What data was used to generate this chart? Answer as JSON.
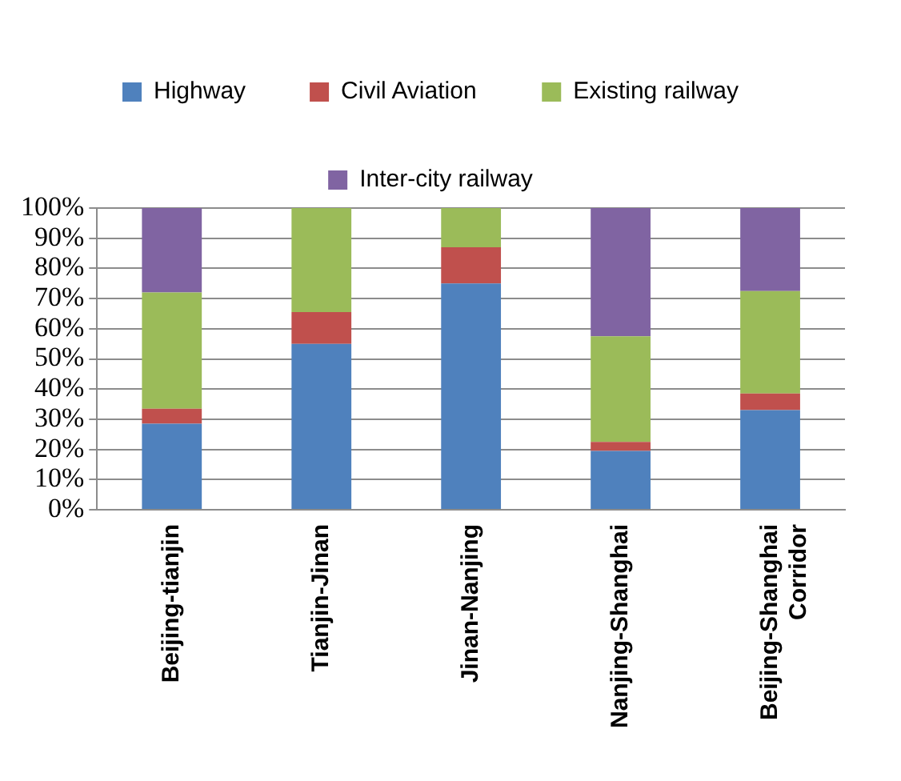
{
  "chart_data": {
    "type": "bar",
    "stacked": true,
    "categories": [
      "Beijing-tianjin",
      "Tianjin-Jinan",
      "Jinan-Nanjing",
      "Nanjing-Shanghai",
      "Beijing-Shanghai Corridor"
    ],
    "series": [
      {
        "name": "Highway",
        "color": "#4f81bd",
        "values": [
          28.5,
          55,
          75,
          19.5,
          33
        ]
      },
      {
        "name": "Civil Aviation",
        "color": "#c0504d",
        "values": [
          5,
          10.5,
          12,
          3,
          5.5
        ]
      },
      {
        "name": "Existing railway",
        "color": "#9bbb59",
        "values": [
          38.5,
          34.5,
          13,
          35,
          34
        ]
      },
      {
        "name": "Inter-city railway",
        "color": "#8064a2",
        "values": [
          28,
          0,
          0,
          42.5,
          27.5
        ]
      }
    ],
    "ylim": [
      0,
      100
    ],
    "yticks": [
      {
        "value": 0,
        "label": "0%"
      },
      {
        "value": 10,
        "label": "10%"
      },
      {
        "value": 20,
        "label": "20%"
      },
      {
        "value": 30,
        "label": "30%"
      },
      {
        "value": 40,
        "label": "40%"
      },
      {
        "value": 50,
        "label": "50%"
      },
      {
        "value": 60,
        "label": "60%"
      },
      {
        "value": 70,
        "label": "70%"
      },
      {
        "value": 80,
        "label": "80%"
      },
      {
        "value": 90,
        "label": "90%"
      },
      {
        "value": 100,
        "label": "100%"
      }
    ],
    "grid": "y",
    "legend": "top"
  }
}
